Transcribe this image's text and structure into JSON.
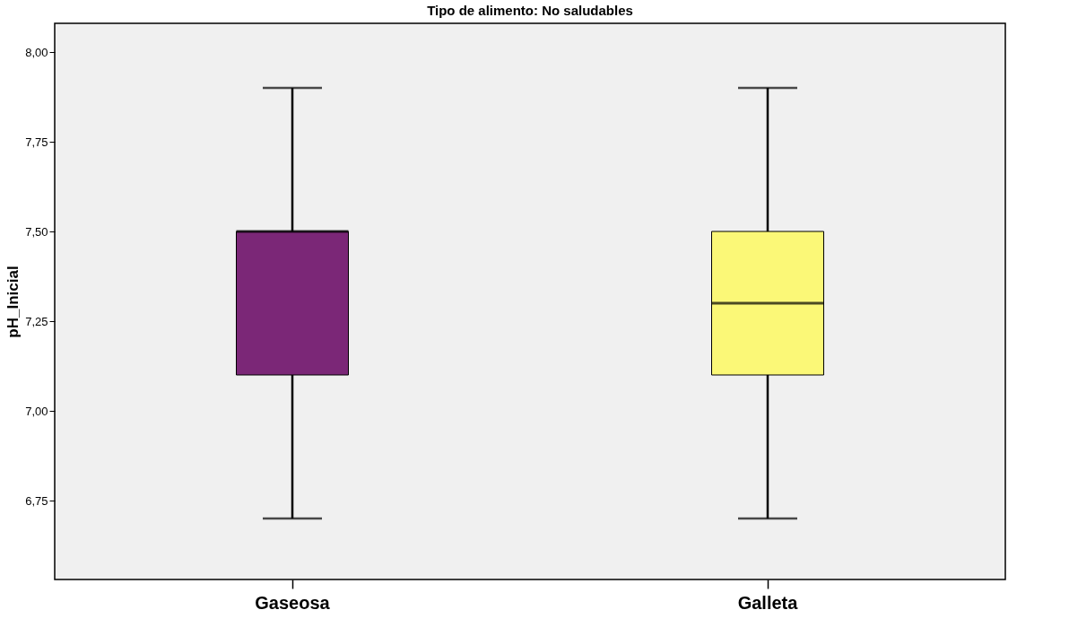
{
  "chart_data": {
    "type": "box",
    "title": "Tipo de alimento: No saludables",
    "ylabel": "pH_Inicial",
    "categories": [
      "Gaseosa",
      "Galleta"
    ],
    "boxes": [
      {
        "low": 6.7,
        "q1": 7.1,
        "median": 7.5,
        "q3": 7.5,
        "high": 7.9
      },
      {
        "low": 6.7,
        "q1": 7.1,
        "median": 7.3,
        "q3": 7.5,
        "high": 7.9
      }
    ],
    "colors": [
      "#7b2777",
      "#fbf877"
    ],
    "ylim": [
      6.53,
      8.08
    ],
    "yticks": [
      {
        "value": 6.75,
        "label": "6,75"
      },
      {
        "value": 7.0,
        "label": "7,00"
      },
      {
        "value": 7.25,
        "label": "7,25"
      },
      {
        "value": 7.5,
        "label": "7,50"
      },
      {
        "value": 7.75,
        "label": "7,75"
      },
      {
        "value": 8.0,
        "label": "8,00"
      }
    ],
    "grid": false
  }
}
